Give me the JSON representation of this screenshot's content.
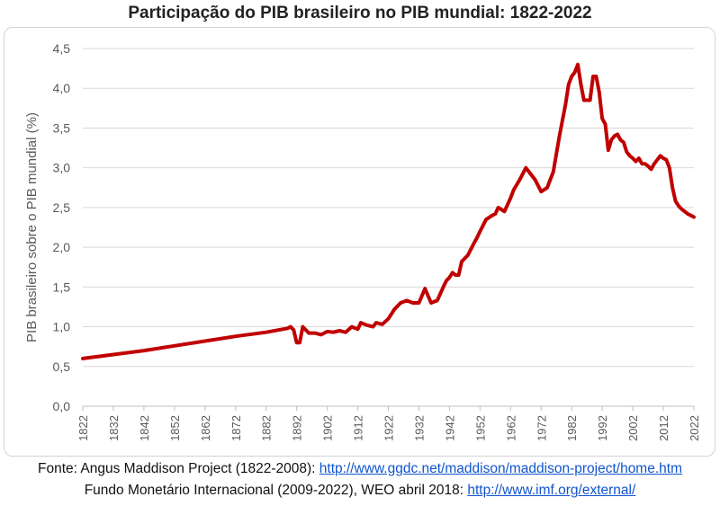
{
  "chart_data": {
    "type": "line",
    "title": "Participação do PIB brasileiro no PIB mundial: 1822-2022",
    "xlabel": "",
    "ylabel": "PIB brasileiro sobre o PIB mundial (%)",
    "ylim": [
      0,
      4.5
    ],
    "xlim": [
      1822,
      2022
    ],
    "yticks": [
      "0,0",
      "0,5",
      "1,0",
      "1,5",
      "2,0",
      "2,5",
      "3,0",
      "3,5",
      "4,0",
      "4,5"
    ],
    "xticks": [
      "1822",
      "1832",
      "1842",
      "1852",
      "1862",
      "1872",
      "1882",
      "1892",
      "1902",
      "1912",
      "1922",
      "1932",
      "1942",
      "1952",
      "1962",
      "1972",
      "1982",
      "1992",
      "2002",
      "2012",
      "2022"
    ],
    "grid": "horizontal",
    "color": "#c00000",
    "series": [
      {
        "x": [
          1822,
          1832,
          1842,
          1852,
          1862,
          1872,
          1882,
          1889,
          1890,
          1891,
          1892,
          1893,
          1894,
          1896,
          1898,
          1900,
          1902,
          1904,
          1906,
          1908,
          1910,
          1912,
          1913,
          1915,
          1917,
          1918,
          1920,
          1922,
          1924,
          1926,
          1928,
          1930,
          1932,
          1934,
          1936,
          1938,
          1940,
          1941,
          1942,
          1943,
          1944,
          1945,
          1946,
          1948,
          1950,
          1951,
          1952,
          1954,
          1956,
          1957,
          1958,
          1960,
          1962,
          1963,
          1965,
          1967,
          1968,
          1970,
          1972,
          1974,
          1975,
          1976,
          1978,
          1980,
          1981,
          1982,
          1983,
          1984,
          1985,
          1986,
          1988,
          1989,
          1990,
          1991,
          1992,
          1993,
          1994,
          1995,
          1996,
          1997,
          1998,
          1999,
          2000,
          2001,
          2002,
          2003,
          2004,
          2005,
          2006,
          2007,
          2008,
          2009,
          2010,
          2011,
          2012,
          2013,
          2014,
          2015,
          2016,
          2017,
          2018,
          2019,
          2020,
          2021,
          2022
        ],
        "y": [
          0.6,
          0.65,
          0.7,
          0.76,
          0.82,
          0.88,
          0.93,
          0.98,
          1.0,
          0.96,
          0.8,
          0.8,
          1.0,
          0.92,
          0.92,
          0.9,
          0.94,
          0.93,
          0.95,
          0.93,
          1.0,
          0.97,
          1.05,
          1.02,
          1.0,
          1.05,
          1.03,
          1.1,
          1.22,
          1.3,
          1.33,
          1.3,
          1.3,
          1.48,
          1.3,
          1.33,
          1.5,
          1.58,
          1.62,
          1.68,
          1.65,
          1.65,
          1.82,
          1.9,
          2.05,
          2.12,
          2.2,
          2.35,
          2.4,
          2.42,
          2.5,
          2.45,
          2.62,
          2.72,
          2.85,
          3.0,
          2.95,
          2.85,
          2.7,
          2.75,
          2.85,
          2.95,
          3.4,
          3.8,
          4.05,
          4.15,
          4.2,
          4.3,
          4.05,
          3.85,
          3.85,
          4.15,
          4.15,
          3.95,
          3.62,
          3.55,
          3.22,
          3.35,
          3.4,
          3.42,
          3.35,
          3.32,
          3.2,
          3.15,
          3.12,
          3.08,
          3.12,
          3.05,
          3.05,
          3.02,
          2.98,
          3.05,
          3.1,
          3.15,
          3.12,
          3.1,
          3.0,
          2.75,
          2.58,
          2.52,
          2.48,
          2.45,
          2.42,
          2.4,
          2.38
        ]
      }
    ]
  },
  "source": {
    "line1_prefix": "Fonte: Angus Maddison Project (1822-2008): ",
    "line1_link": "http://www.ggdc.net/maddison/maddison-project/home.htm",
    "line2_prefix": "Fundo Monetário Internacional (2009-2022), WEO abril 2018: ",
    "line2_link": "http://www.imf.org/external/"
  }
}
